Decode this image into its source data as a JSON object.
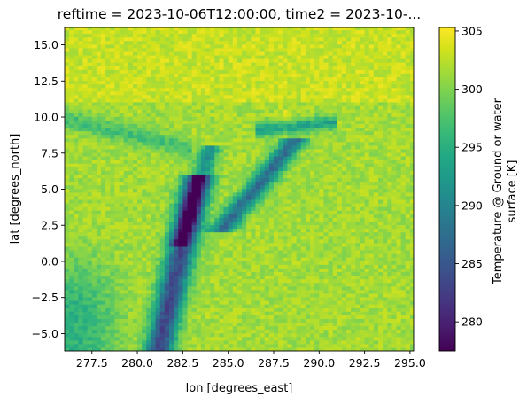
{
  "chart_data": {
    "type": "heatmap",
    "title": "reftime = 2023-10-06T12:00:00, time2 = 2023-10-...",
    "xlabel": "lon [degrees_east]",
    "ylabel": "lat [degrees_north]",
    "xlim": [
      276.0,
      295.2
    ],
    "ylim": [
      -6.2,
      16.2
    ],
    "xticks": [
      {
        "value": 277.5,
        "label": "277.5"
      },
      {
        "value": 280.0,
        "label": "280.0"
      },
      {
        "value": 282.5,
        "label": "282.5"
      },
      {
        "value": 285.0,
        "label": "285.0"
      },
      {
        "value": 287.5,
        "label": "287.5"
      },
      {
        "value": 290.0,
        "label": "290.0"
      },
      {
        "value": 292.5,
        "label": "292.5"
      },
      {
        "value": 295.0,
        "label": "295.0"
      }
    ],
    "yticks": [
      {
        "value": -5.0,
        "label": "−5.0"
      },
      {
        "value": -2.5,
        "label": "−2.5"
      },
      {
        "value": 0.0,
        "label": "0.0"
      },
      {
        "value": 2.5,
        "label": "2.5"
      },
      {
        "value": 5.0,
        "label": "5.0"
      },
      {
        "value": 7.5,
        "label": "7.5"
      },
      {
        "value": 10.0,
        "label": "10.0"
      },
      {
        "value": 12.5,
        "label": "12.5"
      },
      {
        "value": 15.0,
        "label": "15.0"
      }
    ],
    "colorbar": {
      "label_line1": "Temperature @ Ground or water",
      "label_line2": "surface [K]",
      "vmin": 277.5,
      "vmax": 305.3,
      "colormap": "viridis",
      "ticks": [
        {
          "value": 280,
          "label": "280"
        },
        {
          "value": 285,
          "label": "285"
        },
        {
          "value": 290,
          "label": "290"
        },
        {
          "value": 295,
          "label": "295"
        },
        {
          "value": 300,
          "label": "300"
        },
        {
          "value": 305,
          "label": "305"
        }
      ]
    },
    "grid": false
  }
}
